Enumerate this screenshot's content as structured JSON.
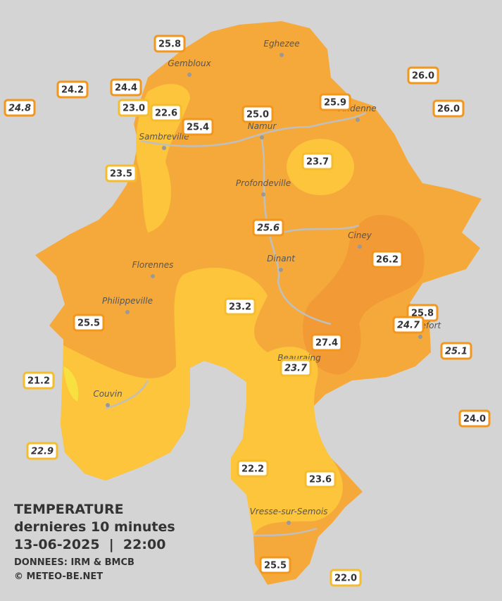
{
  "legend": {
    "title": "TEMPERATURE",
    "subtitle": "dernieres 10 minutes",
    "datetime": "13-06-2025  |  22:00",
    "source": "DONNEES: IRM & BMCB",
    "credit": "© METEO-BE.NET"
  },
  "towns": [
    "Eghezee",
    "Gembloux",
    "Andenne",
    "Namur",
    "Sambreville",
    "Profondeville",
    "Ciney",
    "Dinant",
    "Florennes",
    "Philippeville",
    "Beauraing",
    "Rochefort",
    "Couvin",
    "Vresse-sur-Semois"
  ],
  "stations": [
    "25.8",
    "24.2",
    "24.4",
    "24.8",
    "23.0",
    "22.6",
    "25.4",
    "25.0",
    "25.9",
    "26.0",
    "26.0",
    "23.7",
    "23.5",
    "25.6",
    "26.2",
    "23.2",
    "25.5",
    "25.8",
    "24.7",
    "27.4",
    "25.1",
    "23.7",
    "21.2",
    "24.0",
    "22.9",
    "22.2",
    "23.6",
    "25.5",
    "22.0"
  ]
}
